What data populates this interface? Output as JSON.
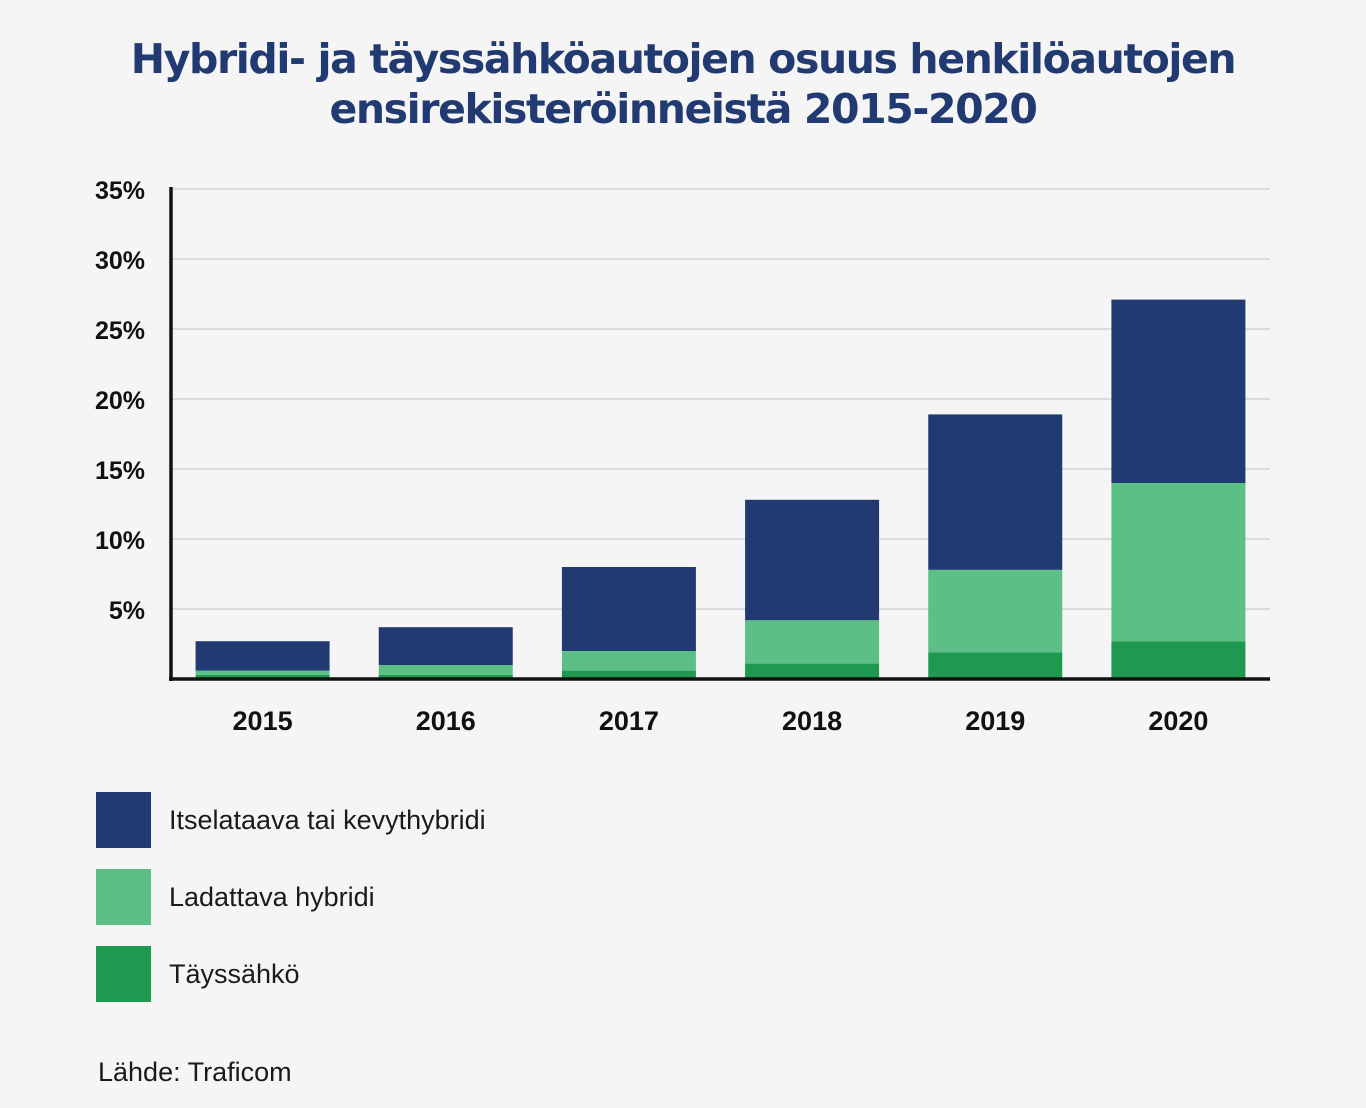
{
  "title": {
    "line1": "Hybridi- ja täyssähköautojen osuus henkilöautojen",
    "line2": "ensirekisteröinneistä 2015-2020"
  },
  "chart_data": {
    "type": "bar",
    "stacked": true,
    "title": "Hybridi- ja täyssähköautojen osuus henkilöautojen ensirekisteröinneistä 2015-2020",
    "categories": [
      "2015",
      "2016",
      "2017",
      "2018",
      "2019",
      "2020"
    ],
    "series": [
      {
        "name": "Täyssähkö",
        "color": "#1f9850",
        "values": [
          0.3,
          0.3,
          0.6,
          1.1,
          1.9,
          2.7
        ]
      },
      {
        "name": "Ladattava hybridi",
        "color": "#5cbf85",
        "values": [
          0.3,
          0.7,
          1.4,
          3.1,
          5.9,
          11.3
        ]
      },
      {
        "name": "Itselataava tai kevythybridi",
        "color": "#213a72",
        "values": [
          2.1,
          2.7,
          6.0,
          8.6,
          11.1,
          13.1
        ]
      }
    ],
    "ylim": [
      0,
      35
    ],
    "yticks": [
      5,
      10,
      15,
      20,
      25,
      30,
      35
    ],
    "ytick_labels": [
      "5%",
      "10%",
      "15%",
      "20%",
      "25%",
      "30%",
      "35%"
    ],
    "xlabel": "",
    "ylabel": "",
    "grid": true,
    "legend_position": "bottom-left"
  },
  "legend": {
    "items": [
      {
        "label": "Itselataava tai kevythybridi",
        "color": "#213a72"
      },
      {
        "label": "Ladattava hybridi",
        "color": "#5cbf85"
      },
      {
        "label": "Täyssähkö",
        "color": "#1f9850"
      }
    ]
  },
  "source": "Lähde: Traficom"
}
